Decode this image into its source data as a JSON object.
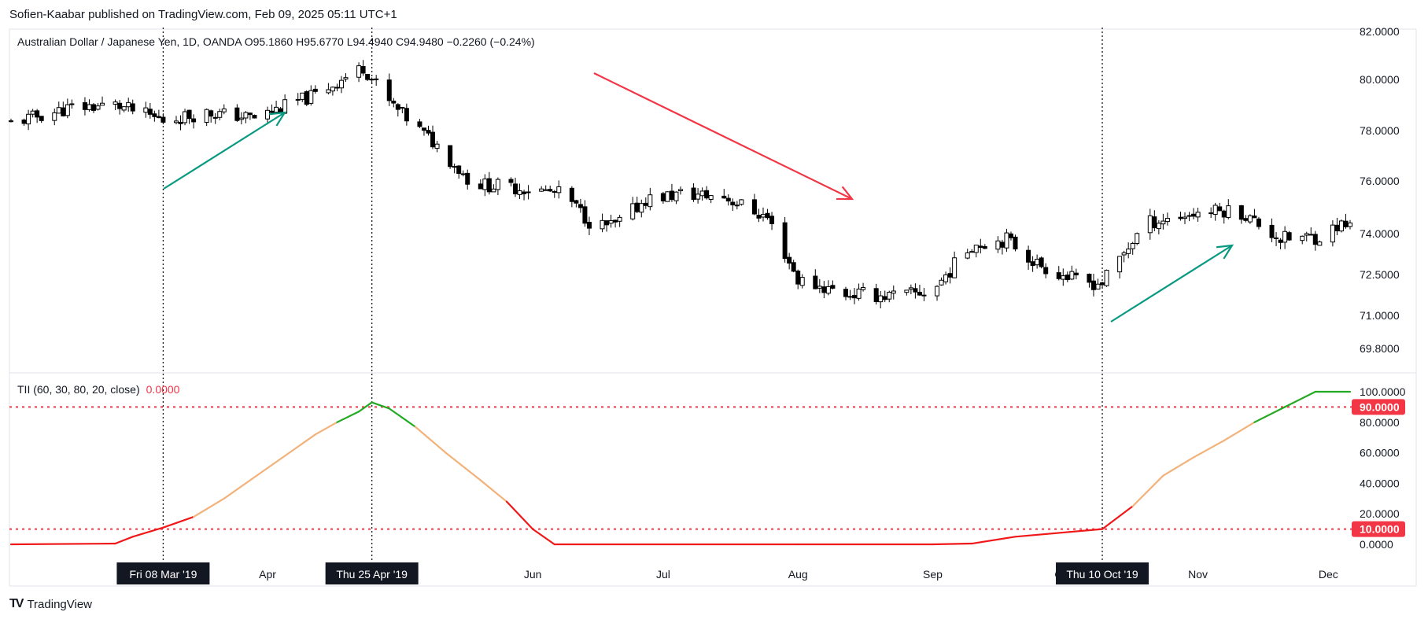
{
  "header": {
    "byline": "Sofien-Kaabar published on TradingView.com, Feb 09, 2025 05:11 UTC+1",
    "symbol_legend": "Australian Dollar / Japanese Yen, 1D, OANDA  O95.1860  H95.6770  L94.4940  C94.9480  −0.2260 (−0.24%)"
  },
  "indicator": {
    "label": "TII (60, 30, 80, 20, close)",
    "value": "0.0000"
  },
  "footer": {
    "brand": "TradingView",
    "brand_mark": "TV"
  },
  "colors": {
    "up_candle": "#ffffff",
    "down_candle": "#000000",
    "green_arrow": "#089981",
    "red_arrow": "#f23645",
    "tii_high": "#22ab22",
    "tii_mid": "#f2b27a",
    "tii_low": "#f01818",
    "level_line": "#f23645"
  },
  "chart_data": [
    {
      "type": "candlestick",
      "title": "Australian Dollar / Japanese Yen, 1D, OANDA",
      "y_axis_ticks": [
        "82.0000",
        "80.0000",
        "78.0000",
        "76.0000",
        "74.0000",
        "72.5000",
        "71.0000",
        "69.8000"
      ],
      "ylim": [
        69.2,
        82.2
      ],
      "x_axis_ticks": [
        "Apr",
        "Jun",
        "Jul",
        "Aug",
        "Sep",
        "Oct",
        "Nov",
        "Dec"
      ],
      "highlight_dates": [
        "Fri 08 Mar '19",
        "Thu 25 Apr '19",
        "Thu 10 Oct '19"
      ],
      "close_path": [
        [
          "2019-02-01",
          78.3
        ],
        [
          "2019-02-15",
          78.9
        ],
        [
          "2019-02-25",
          79.0
        ],
        [
          "2019-03-08",
          78.4
        ],
        [
          "2019-03-18",
          78.7
        ],
        [
          "2019-03-29",
          78.5
        ],
        [
          "2019-04-12",
          79.4
        ],
        [
          "2019-04-23",
          80.5
        ],
        [
          "2019-04-29",
          79.1
        ],
        [
          "2019-05-10",
          77.4
        ],
        [
          "2019-05-18",
          75.9
        ],
        [
          "2019-05-31",
          75.7
        ],
        [
          "2019-06-08",
          75.5
        ],
        [
          "2019-06-15",
          74.3
        ],
        [
          "2019-06-20",
          74.3
        ],
        [
          "2019-06-27",
          75.3
        ],
        [
          "2019-07-05",
          75.5
        ],
        [
          "2019-07-15",
          75.4
        ],
        [
          "2019-07-25",
          74.6
        ],
        [
          "2019-08-01",
          72.3
        ],
        [
          "2019-08-12",
          71.8
        ],
        [
          "2019-08-24",
          71.7
        ],
        [
          "2019-09-01",
          71.9
        ],
        [
          "2019-09-10",
          73.6
        ],
        [
          "2019-09-18",
          73.8
        ],
        [
          "2019-09-25",
          72.9
        ],
        [
          "2019-10-05",
          72.2
        ],
        [
          "2019-10-10",
          72.2
        ],
        [
          "2019-10-20",
          74.4
        ],
        [
          "2019-11-01",
          74.8
        ],
        [
          "2019-11-10",
          74.9
        ],
        [
          "2019-11-20",
          73.8
        ],
        [
          "2019-11-30",
          73.9
        ],
        [
          "2019-12-03",
          74.3
        ]
      ]
    },
    {
      "type": "line",
      "title": "TII (60, 30, 80, 20, close)",
      "y_axis_ticks": [
        "100.0000",
        "80.0000",
        "60.0000",
        "40.0000",
        "20.0000",
        "0.0000"
      ],
      "ylim": [
        -2,
        108
      ],
      "levels": [
        {
          "label": "90.0000",
          "value": 90
        },
        {
          "label": "10.0000",
          "value": 10
        }
      ],
      "series": [
        {
          "values": [
            [
              "2019-02-01",
              0
            ],
            [
              "2019-02-25",
              0.5
            ],
            [
              "2019-03-01",
              5
            ],
            [
              "2019-03-08",
              11
            ],
            [
              "2019-03-15",
              18
            ],
            [
              "2019-03-22",
              30
            ],
            [
              "2019-03-29",
              44
            ],
            [
              "2019-04-05",
              58
            ],
            [
              "2019-04-12",
              72
            ],
            [
              "2019-04-17",
              80
            ],
            [
              "2019-04-22",
              87
            ],
            [
              "2019-04-25",
              93
            ],
            [
              "2019-04-29",
              89
            ],
            [
              "2019-05-05",
              77
            ],
            [
              "2019-05-12",
              60
            ],
            [
              "2019-05-20",
              42
            ],
            [
              "2019-05-26",
              28
            ],
            [
              "2019-06-01",
              10
            ],
            [
              "2019-06-06",
              0
            ],
            [
              "2019-08-01",
              0
            ],
            [
              "2019-09-01",
              0
            ],
            [
              "2019-09-10",
              0.5
            ],
            [
              "2019-09-20",
              5
            ],
            [
              "2019-10-10",
              10
            ],
            [
              "2019-10-17",
              25
            ],
            [
              "2019-10-24",
              45
            ],
            [
              "2019-10-31",
              57
            ],
            [
              "2019-11-07",
              68
            ],
            [
              "2019-11-14",
              80
            ],
            [
              "2019-11-21",
              90
            ],
            [
              "2019-11-28",
              100
            ],
            [
              "2019-12-06",
              100
            ]
          ]
        }
      ]
    }
  ]
}
